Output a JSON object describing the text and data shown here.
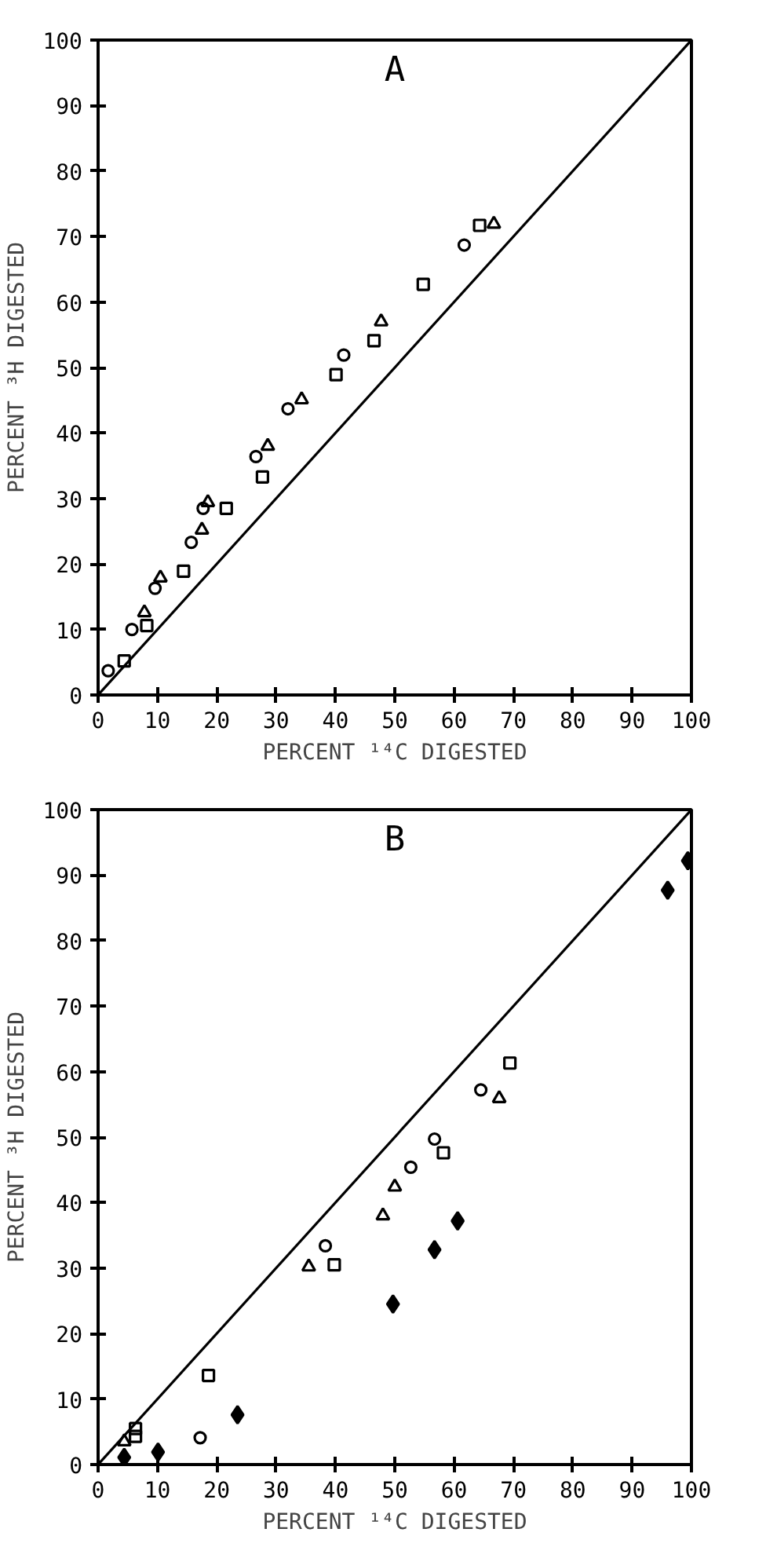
{
  "chart_data": [
    {
      "type": "scatter",
      "title": "A",
      "xlabel": "PERCENT ¹⁴C DIGESTED",
      "ylabel": "PERCENT ³H DIGESTED",
      "xlim": [
        0,
        100
      ],
      "ylim": [
        0,
        100
      ],
      "xticks": [
        0,
        10,
        20,
        30,
        40,
        50,
        60,
        70,
        80,
        90,
        100
      ],
      "yticks": [
        0,
        10,
        20,
        30,
        40,
        50,
        60,
        70,
        80,
        90,
        100
      ],
      "grid": false,
      "series": [
        {
          "color": "#000000",
          "marker": "circle",
          "x": [
            1.7,
            5.7,
            9.6,
            15.7,
            17.7,
            26.6,
            32,
            41.4,
            61.7
          ],
          "values": [
            3.7,
            10,
            16.3,
            23.3,
            28.5,
            36.4,
            43.7,
            51.9,
            68.7
          ]
        },
        {
          "color": "#000000",
          "marker": "triangle",
          "x": [
            7.8,
            10.5,
            17.5,
            18.5,
            28.6,
            34.3,
            47.7,
            66.7
          ],
          "values": [
            12.6,
            17.9,
            25.2,
            29.4,
            38,
            45.1,
            57,
            71.9
          ]
        },
        {
          "color": "#000000",
          "marker": "square",
          "x": [
            4.4,
            8.2,
            14.4,
            21.6,
            27.7,
            40.1,
            46.5,
            54.8,
            64.3
          ],
          "values": [
            5.2,
            10.6,
            18.9,
            28.5,
            33.3,
            48.9,
            54.1,
            62.7,
            71.7
          ]
        },
        {
          "type": "line",
          "color": "#000000",
          "line_style": "solid",
          "x": [
            0,
            100
          ],
          "values": [
            0,
            100
          ]
        }
      ]
    },
    {
      "type": "scatter",
      "title": "B",
      "xlabel": "PERCENT ¹⁴C DIGESTED",
      "ylabel": "PERCENT ³H DIGESTED",
      "xlim": [
        0,
        100
      ],
      "ylim": [
        0,
        100
      ],
      "xticks": [
        0,
        10,
        20,
        30,
        40,
        50,
        60,
        70,
        80,
        90,
        100
      ],
      "yticks": [
        0,
        10,
        20,
        30,
        40,
        50,
        60,
        70,
        80,
        90,
        100
      ],
      "grid": false,
      "series": [
        {
          "color": "#000000",
          "marker": "diamond",
          "x": [
            4.4,
            10.1,
            23.5,
            49.7,
            56.7,
            60.6,
            96,
            99.4
          ],
          "values": [
            1.1,
            1.9,
            7.6,
            24.5,
            32.8,
            37.2,
            87.7,
            92.2
          ]
        },
        {
          "color": "#000000",
          "marker": "circle",
          "x": [
            17.2
          ],
          "values": [
            4.1
          ]
        },
        {
          "color": "#000000",
          "marker": "circle",
          "x": [
            38.3,
            52.7,
            56.7,
            64.5
          ],
          "values": [
            33.4,
            45.4,
            49.7,
            57.2
          ]
        },
        {
          "color": "#000000",
          "marker": "triangle",
          "x": [
            4.4,
            35.5,
            48,
            50,
            67.6
          ],
          "values": [
            3.5,
            30.2,
            38,
            42.4,
            55.9
          ]
        },
        {
          "color": "#000000",
          "marker": "square",
          "x": [
            6.3,
            6.3,
            18.6,
            39.8,
            58.2,
            69.4
          ],
          "values": [
            5.5,
            4.3,
            13.6,
            30.5,
            47.6,
            61.3
          ]
        },
        {
          "type": "line",
          "color": "#000000",
          "line_style": "solid",
          "x": [
            0,
            100
          ],
          "values": [
            0,
            100
          ]
        }
      ]
    }
  ]
}
